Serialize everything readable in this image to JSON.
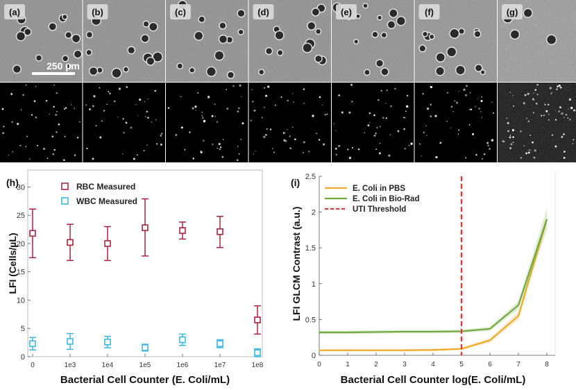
{
  "panels": {
    "labels": [
      "(a)",
      "(b)",
      "(c)",
      "(d)",
      "(e)",
      "(f)",
      "(g)"
    ],
    "scale_bar": "250 µm",
    "noise_levels": [
      0.15,
      0.18,
      0.2,
      0.2,
      0.25,
      0.45,
      0.95
    ],
    "dark_density": [
      0.2,
      0.2,
      0.2,
      0.2,
      0.3,
      0.45,
      1.0
    ]
  },
  "chart_data": [
    {
      "id": "h",
      "panel_label": "(h)",
      "type": "scatter",
      "xlabel": "Bacterial Cell Counter (E. Coli/mL)",
      "ylabel": "LFI (Cells/µL)",
      "categories": [
        "0",
        "1e3",
        "1e4",
        "1e5",
        "1e6",
        "1e7",
        "1e8"
      ],
      "ylim": [
        0,
        33
      ],
      "yticks": [
        0,
        5,
        10,
        15,
        20,
        25,
        30
      ],
      "series": [
        {
          "name": "RBC Measured",
          "color": "#a8223f",
          "values": [
            21.8,
            20.2,
            20.0,
            22.8,
            22.3,
            22.1,
            6.5
          ],
          "lower": [
            17.5,
            17.0,
            17.0,
            17.8,
            20.8,
            19.3,
            4.0
          ],
          "upper": [
            26.1,
            23.4,
            23.0,
            27.9,
            23.8,
            24.8,
            9.0
          ]
        },
        {
          "name": "WBC Measured",
          "color": "#3cb7e0",
          "values": [
            2.3,
            2.7,
            2.6,
            1.6,
            3.0,
            2.3,
            0.7
          ],
          "lower": [
            1.2,
            1.3,
            1.6,
            1.0,
            2.0,
            1.6,
            0.0
          ],
          "upper": [
            3.4,
            4.1,
            3.6,
            2.2,
            4.0,
            3.0,
            1.4
          ]
        }
      ]
    },
    {
      "id": "i",
      "panel_label": "(i)",
      "type": "line",
      "xlabel": "Bacterial Cell Counter log(E. Coli/mL)",
      "ylabel": "LFI GLCM Contrast (a.u.)",
      "xlim": [
        0,
        8.3
      ],
      "ylim": [
        0,
        2.5
      ],
      "xticks": [
        0,
        1,
        2,
        3,
        4,
        5,
        6,
        7,
        8
      ],
      "yticks": [
        0,
        0.5,
        1,
        1.5,
        2,
        2.5
      ],
      "x": [
        0,
        1,
        2,
        3,
        4,
        5,
        6,
        7,
        8
      ],
      "series": [
        {
          "name": "E. Coli in PBS",
          "color": "#f0a92a",
          "values": [
            0.07,
            0.07,
            0.07,
            0.07,
            0.075,
            0.09,
            0.21,
            0.55,
            1.9
          ],
          "band": [
            0.015,
            0.015,
            0.015,
            0.015,
            0.015,
            0.02,
            0.03,
            0.06,
            0.08
          ]
        },
        {
          "name": "E. Coli in Bio-Rad",
          "color": "#6fa83b",
          "values": [
            0.32,
            0.32,
            0.325,
            0.33,
            0.33,
            0.335,
            0.37,
            0.7,
            1.9
          ],
          "band": [
            0.025,
            0.025,
            0.025,
            0.025,
            0.025,
            0.025,
            0.03,
            0.06,
            0.16
          ]
        }
      ],
      "threshold": {
        "name": "UTI Threshold",
        "x": 5,
        "color": "#d13b3b"
      }
    }
  ]
}
